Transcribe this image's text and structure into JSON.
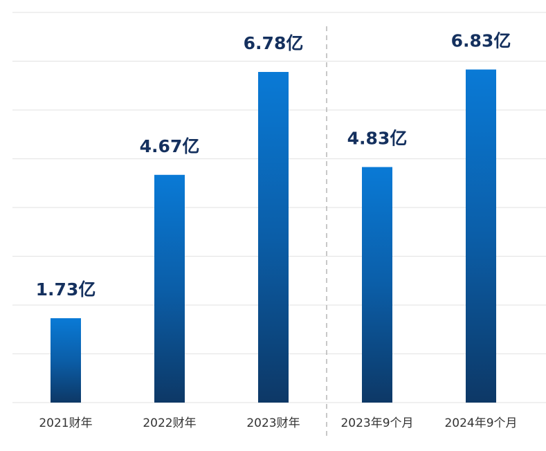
{
  "chart_data": {
    "type": "bar",
    "categories": [
      "2021财年",
      "2022财年",
      "2023财年",
      "2023年9个月",
      "2024年9个月"
    ],
    "values": [
      1.73,
      4.67,
      6.78,
      4.83,
      6.83
    ],
    "value_labels": [
      "1.73亿",
      "4.67亿",
      "6.78亿",
      "4.83亿",
      "6.83亿"
    ],
    "color": "#0a78d2",
    "ylim": [
      0,
      8
    ],
    "yticks": [
      0,
      1,
      2,
      3,
      4,
      5,
      6,
      7,
      8
    ],
    "grid": true
  }
}
